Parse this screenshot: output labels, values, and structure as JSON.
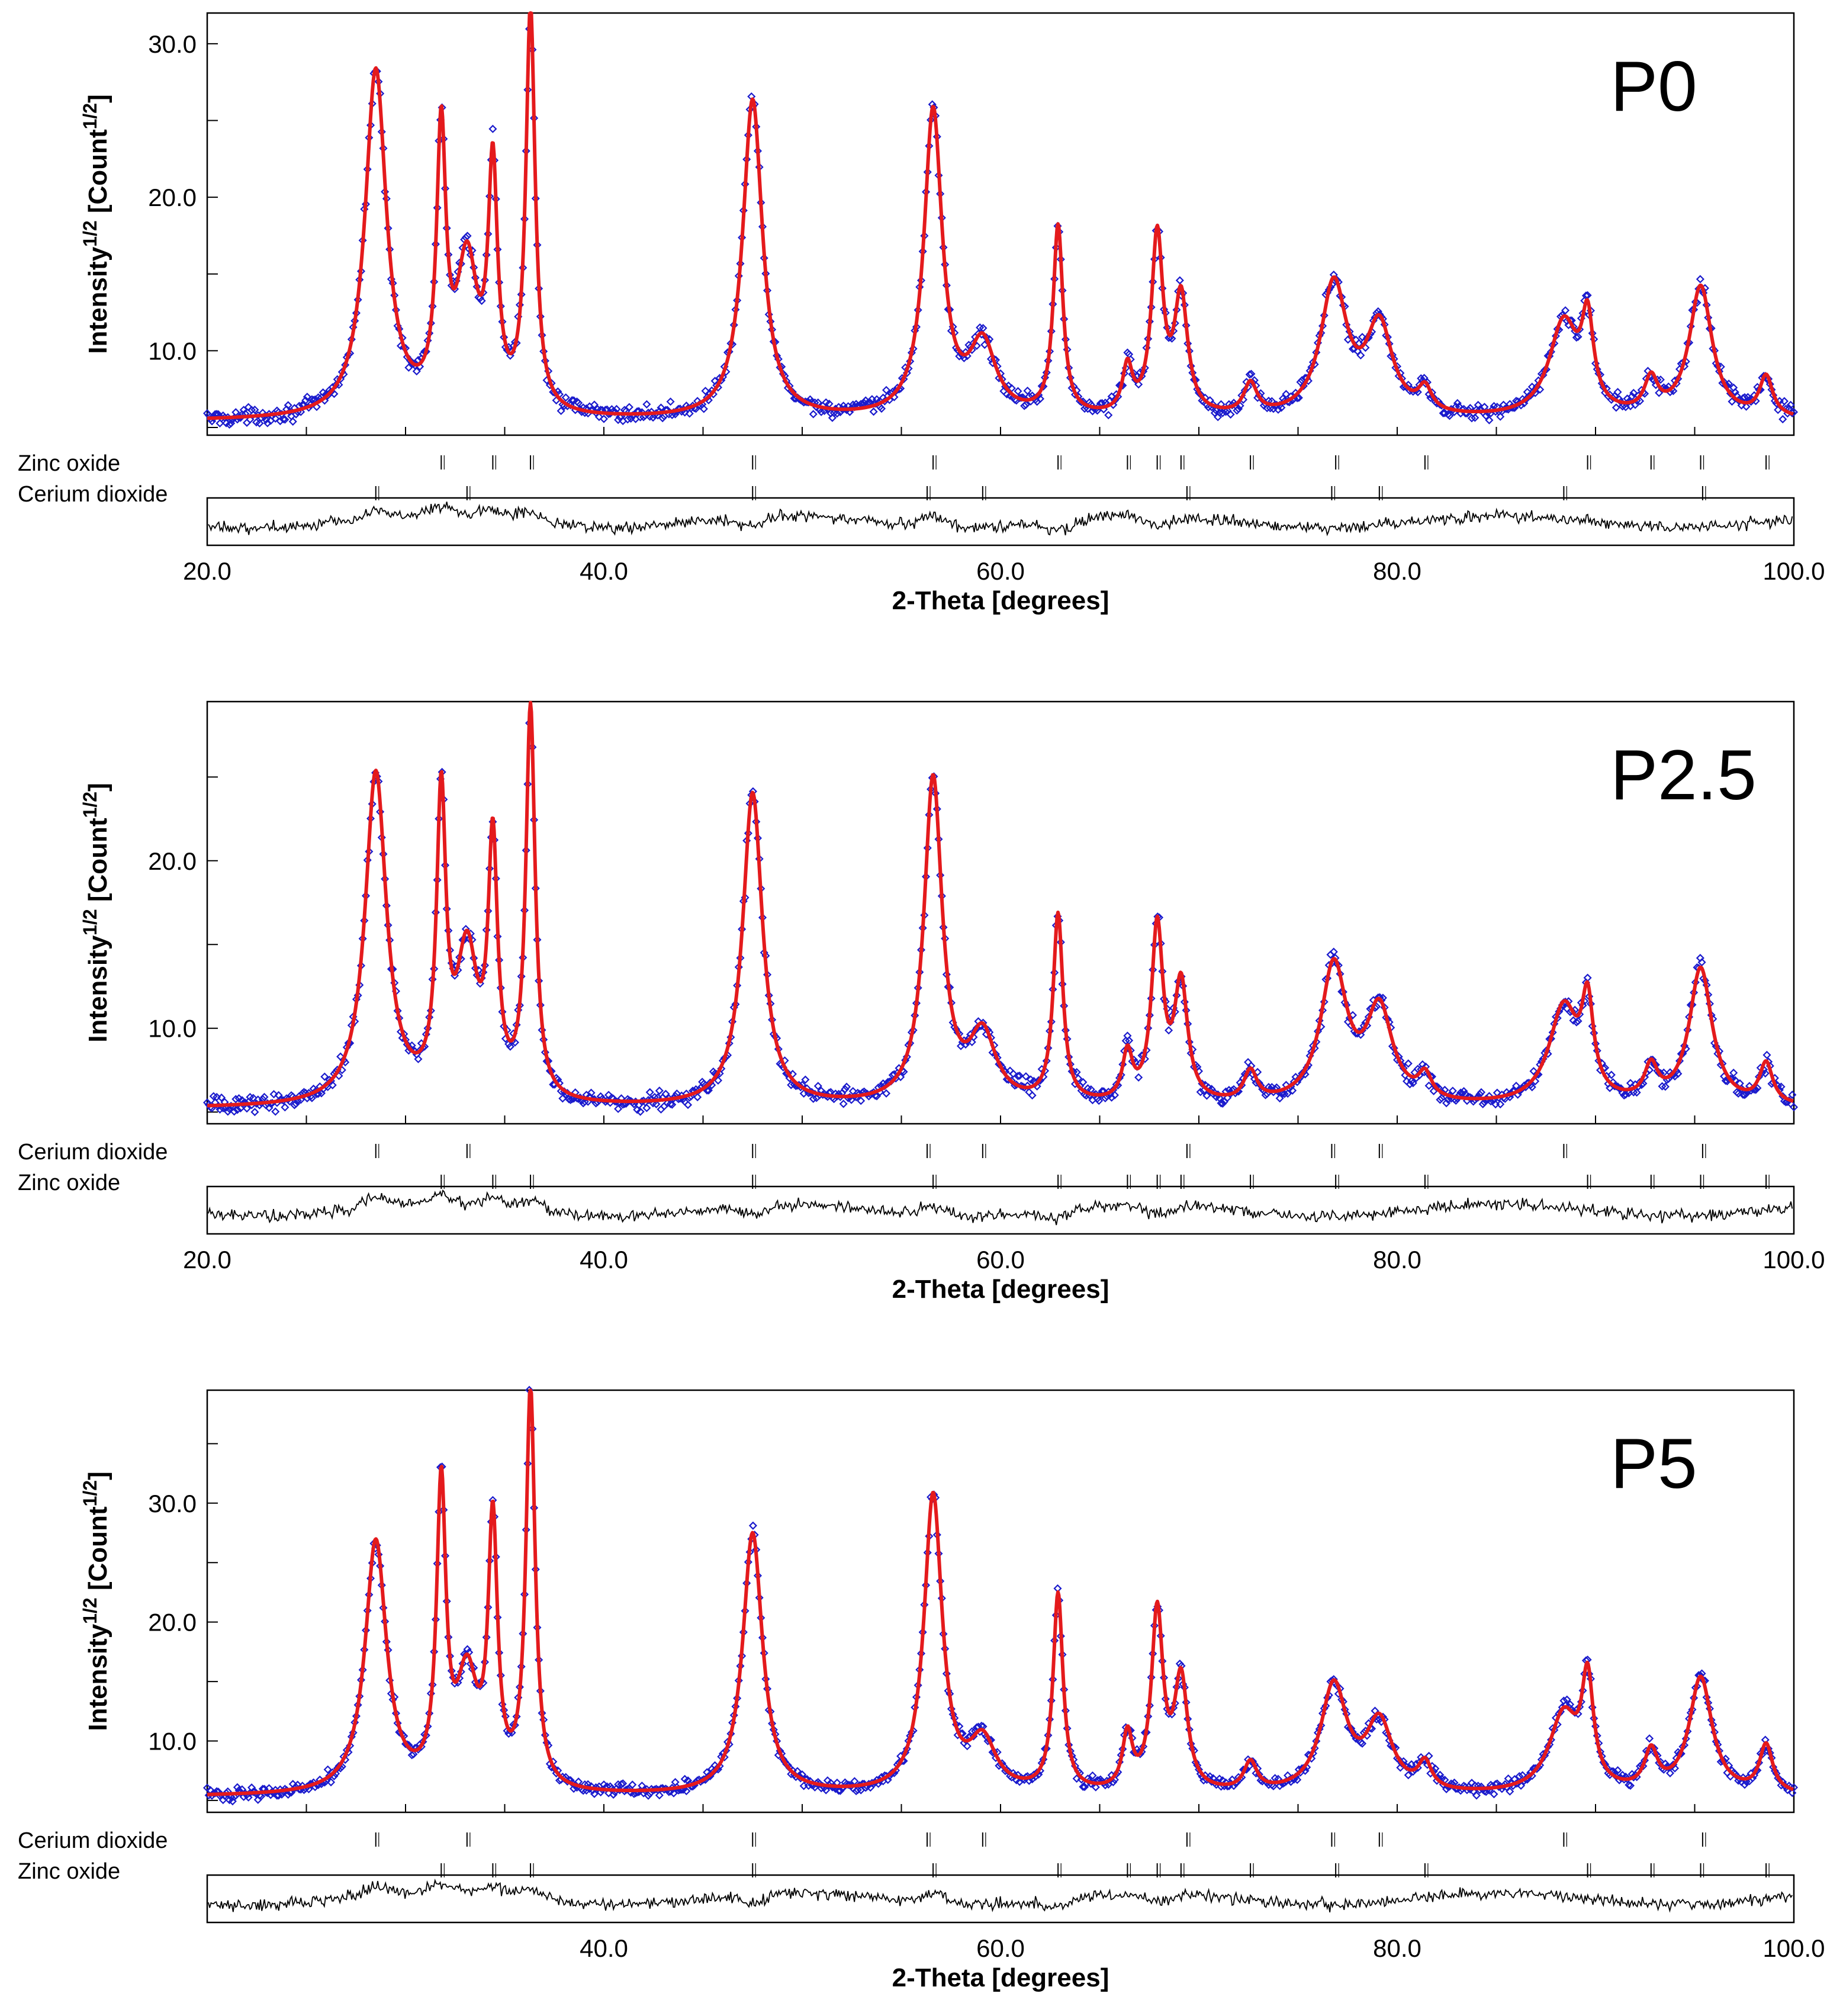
{
  "colors": {
    "observed": "#1a1acc",
    "calculated": "#e41a1c",
    "difference": "#000000",
    "frame": "#000000"
  },
  "chart_data": [
    {
      "type": "line",
      "label": "P0",
      "xlabel": "2-Theta [degrees]",
      "ylabel_base": "Intensity",
      "ylabel_sup1": "1/2",
      "ylabel_mid": " [Count",
      "ylabel_sup2": "1/2",
      "ylabel_end": "]",
      "xlim": [
        20.0,
        100.0
      ],
      "ylim": [
        4.5,
        32.0
      ],
      "x_ticks": [
        "20.0",
        "40.0",
        "60.0",
        "80.0",
        "100.0"
      ],
      "y_ticks": [
        "10.0",
        "20.0",
        "30.0"
      ],
      "y_tick_values": [
        10,
        20,
        30
      ],
      "background": 5.4,
      "series": [
        {
          "name": "Observed",
          "marker": "diamond"
        },
        {
          "name": "Calculated",
          "marker": "line"
        },
        {
          "name": "Difference",
          "marker": "line"
        }
      ],
      "phases": [
        {
          "name": "Zinc oxide",
          "positions": [
            31.8,
            34.4,
            36.3,
            47.5,
            56.6,
            62.9,
            66.4,
            67.9,
            69.1,
            72.6,
            76.9,
            81.4,
            89.6,
            92.8,
            95.3,
            98.6
          ]
        },
        {
          "name": "Cerium dioxide",
          "positions": [
            28.5,
            33.1,
            47.5,
            56.3,
            59.1,
            69.4,
            76.7,
            79.1,
            88.4,
            95.4
          ]
        }
      ],
      "peaks": [
        {
          "x": 28.5,
          "h": 22.6,
          "w": 0.65
        },
        {
          "x": 31.8,
          "h": 17.5,
          "w": 0.28
        },
        {
          "x": 33.1,
          "h": 9.6,
          "w": 0.65
        },
        {
          "x": 34.4,
          "h": 15.2,
          "w": 0.28
        },
        {
          "x": 36.3,
          "h": 26.2,
          "w": 0.28
        },
        {
          "x": 47.5,
          "h": 20.8,
          "w": 0.6
        },
        {
          "x": 56.6,
          "h": 19.9,
          "w": 0.55
        },
        {
          "x": 59.1,
          "h": 4.6,
          "w": 0.8
        },
        {
          "x": 62.9,
          "h": 12.3,
          "w": 0.3
        },
        {
          "x": 66.4,
          "h": 3.0,
          "w": 0.3
        },
        {
          "x": 67.9,
          "h": 11.6,
          "w": 0.35
        },
        {
          "x": 69.1,
          "h": 7.6,
          "w": 0.4
        },
        {
          "x": 72.6,
          "h": 2.0,
          "w": 0.4
        },
        {
          "x": 76.8,
          "h": 8.6,
          "w": 0.8
        },
        {
          "x": 79.1,
          "h": 5.8,
          "w": 0.8
        },
        {
          "x": 81.4,
          "h": 1.5,
          "w": 0.4
        },
        {
          "x": 88.4,
          "h": 6.2,
          "w": 0.9
        },
        {
          "x": 89.6,
          "h": 5.4,
          "w": 0.35
        },
        {
          "x": 92.8,
          "h": 2.2,
          "w": 0.4
        },
        {
          "x": 95.3,
          "h": 8.6,
          "w": 0.7
        },
        {
          "x": 98.6,
          "h": 2.6,
          "w": 0.4
        }
      ]
    },
    {
      "type": "line",
      "label": "P2.5",
      "xlabel": "2-Theta [degrees]",
      "ylabel_base": "Intensity",
      "ylabel_sup1": "1/2",
      "ylabel_mid": " [Count",
      "ylabel_sup2": "1/2",
      "ylabel_end": "]",
      "xlim": [
        20.0,
        100.0
      ],
      "ylim": [
        4.3,
        29.5
      ],
      "x_ticks": [
        "20.0",
        "40.0",
        "60.0",
        "80.0",
        "100.0"
      ],
      "y_ticks": [
        "10.0",
        "20.0"
      ],
      "y_tick_values": [
        10,
        20
      ],
      "background": 5.2,
      "series": [
        {
          "name": "Observed",
          "marker": "diamond"
        },
        {
          "name": "Calculated",
          "marker": "line"
        },
        {
          "name": "Difference",
          "marker": "line"
        }
      ],
      "phases": [
        {
          "name": "Cerium dioxide",
          "positions": [
            28.5,
            33.1,
            47.5,
            56.3,
            59.1,
            69.4,
            76.7,
            79.1,
            88.4,
            95.4
          ]
        },
        {
          "name": "Zinc oxide",
          "positions": [
            31.8,
            34.4,
            36.3,
            47.5,
            56.6,
            62.9,
            66.4,
            67.9,
            69.1,
            72.6,
            76.9,
            81.4,
            89.6,
            92.8,
            95.3,
            98.6
          ]
        }
      ],
      "peaks": [
        {
          "x": 28.5,
          "h": 19.8,
          "w": 0.65
        },
        {
          "x": 31.8,
          "h": 17.4,
          "w": 0.28
        },
        {
          "x": 33.1,
          "h": 8.6,
          "w": 0.65
        },
        {
          "x": 34.4,
          "h": 14.7,
          "w": 0.28
        },
        {
          "x": 36.3,
          "h": 23.3,
          "w": 0.28
        },
        {
          "x": 47.5,
          "h": 18.7,
          "w": 0.6
        },
        {
          "x": 56.6,
          "h": 19.4,
          "w": 0.55
        },
        {
          "x": 59.1,
          "h": 4.0,
          "w": 0.8
        },
        {
          "x": 62.9,
          "h": 11.2,
          "w": 0.3
        },
        {
          "x": 66.4,
          "h": 2.8,
          "w": 0.3
        },
        {
          "x": 67.9,
          "h": 10.4,
          "w": 0.35
        },
        {
          "x": 69.1,
          "h": 7.0,
          "w": 0.4
        },
        {
          "x": 72.6,
          "h": 1.8,
          "w": 0.4
        },
        {
          "x": 76.8,
          "h": 8.2,
          "w": 0.8
        },
        {
          "x": 79.1,
          "h": 5.5,
          "w": 0.8
        },
        {
          "x": 81.4,
          "h": 1.4,
          "w": 0.4
        },
        {
          "x": 88.4,
          "h": 5.8,
          "w": 0.9
        },
        {
          "x": 89.6,
          "h": 5.2,
          "w": 0.35
        },
        {
          "x": 92.8,
          "h": 2.0,
          "w": 0.4
        },
        {
          "x": 95.3,
          "h": 8.2,
          "w": 0.7
        },
        {
          "x": 98.6,
          "h": 2.4,
          "w": 0.4
        }
      ]
    },
    {
      "type": "line",
      "label": "P5",
      "xlabel": "2-Theta [degrees]",
      "ylabel_base": "Intensity",
      "ylabel_sup1": "1/2",
      "ylabel_mid": " [Count",
      "ylabel_sup2": "1/2",
      "ylabel_end": "]",
      "xlim": [
        20.0,
        100.0
      ],
      "ylim": [
        4.0,
        39.5
      ],
      "x_ticks": [
        "",
        "40.0",
        "60.0",
        "80.0",
        "100.0"
      ],
      "y_ticks": [
        "10.0",
        "20.0",
        "30.0"
      ],
      "y_tick_values": [
        10,
        20,
        30
      ],
      "background": 5.3,
      "series": [
        {
          "name": "Observed",
          "marker": "diamond"
        },
        {
          "name": "Calculated",
          "marker": "line"
        },
        {
          "name": "Difference",
          "marker": "line"
        }
      ],
      "phases": [
        {
          "name": "Cerium dioxide",
          "positions": [
            28.5,
            33.1,
            47.5,
            56.3,
            59.1,
            69.4,
            76.7,
            79.1,
            88.4,
            95.4
          ]
        },
        {
          "name": "Zinc oxide",
          "positions": [
            31.8,
            34.4,
            36.3,
            47.5,
            56.6,
            62.9,
            66.4,
            67.9,
            69.1,
            72.6,
            76.9,
            81.4,
            89.6,
            92.8,
            95.3,
            98.6
          ]
        }
      ],
      "peaks": [
        {
          "x": 28.5,
          "h": 21.2,
          "w": 0.65
        },
        {
          "x": 31.8,
          "h": 24.8,
          "w": 0.28
        },
        {
          "x": 33.1,
          "h": 9.2,
          "w": 0.65
        },
        {
          "x": 34.4,
          "h": 21.8,
          "w": 0.28
        },
        {
          "x": 36.3,
          "h": 33.6,
          "w": 0.28
        },
        {
          "x": 47.5,
          "h": 22.0,
          "w": 0.6
        },
        {
          "x": 56.6,
          "h": 25.0,
          "w": 0.55
        },
        {
          "x": 59.1,
          "h": 4.2,
          "w": 0.8
        },
        {
          "x": 62.9,
          "h": 16.6,
          "w": 0.3
        },
        {
          "x": 66.4,
          "h": 4.6,
          "w": 0.3
        },
        {
          "x": 67.9,
          "h": 15.0,
          "w": 0.35
        },
        {
          "x": 69.1,
          "h": 9.3,
          "w": 0.4
        },
        {
          "x": 72.6,
          "h": 2.4,
          "w": 0.4
        },
        {
          "x": 76.8,
          "h": 9.0,
          "w": 0.8
        },
        {
          "x": 79.1,
          "h": 5.8,
          "w": 0.8
        },
        {
          "x": 81.4,
          "h": 2.2,
          "w": 0.4
        },
        {
          "x": 88.4,
          "h": 6.6,
          "w": 0.9
        },
        {
          "x": 89.6,
          "h": 8.6,
          "w": 0.35
        },
        {
          "x": 92.8,
          "h": 3.2,
          "w": 0.4
        },
        {
          "x": 95.3,
          "h": 9.8,
          "w": 0.7
        },
        {
          "x": 98.6,
          "h": 4.0,
          "w": 0.4
        }
      ]
    }
  ]
}
